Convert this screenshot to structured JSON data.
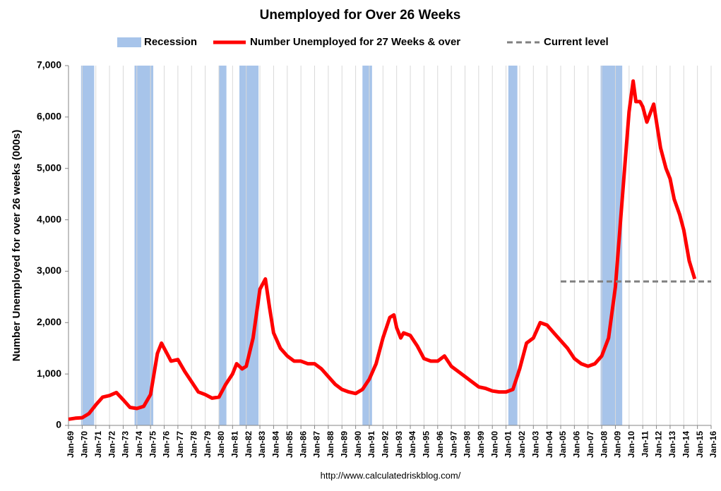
{
  "chart_data": {
    "type": "line",
    "title": "Unemployed for Over 26 Weeks",
    "y_label": "Number Unemployed for over 26 weeks (000s)",
    "source": "http://www.calculatedriskblog.com/",
    "grid": "vertical",
    "legend": "top",
    "xlim": [
      1969,
      2016
    ],
    "ylim": [
      0,
      7000
    ],
    "yticks": [
      0,
      {
        "value": 1000,
        "label": "1,000"
      },
      {
        "value": 2000,
        "label": "2,000"
      },
      {
        "value": 3000,
        "label": "3,000"
      },
      {
        "value": 4000,
        "label": "4,000"
      },
      {
        "value": 5000,
        "label": "5,000"
      },
      {
        "value": 6000,
        "label": "6,000"
      },
      {
        "value": 7000,
        "label": "7,000"
      }
    ],
    "xticks": [
      {
        "value": 1969,
        "label": "Jan-69"
      },
      {
        "value": 1970,
        "label": "Jan-70"
      },
      {
        "value": 1971,
        "label": "Jan-71"
      },
      {
        "value": 1972,
        "label": "Jan-72"
      },
      {
        "value": 1973,
        "label": "Jan-73"
      },
      {
        "value": 1974,
        "label": "Jan-74"
      },
      {
        "value": 1975,
        "label": "Jan-75"
      },
      {
        "value": 1976,
        "label": "Jan-76"
      },
      {
        "value": 1977,
        "label": "Jan-77"
      },
      {
        "value": 1978,
        "label": "Jan-78"
      },
      {
        "value": 1979,
        "label": "Jan-79"
      },
      {
        "value": 1980,
        "label": "Jan-80"
      },
      {
        "value": 1981,
        "label": "Jan-81"
      },
      {
        "value": 1982,
        "label": "Jan-82"
      },
      {
        "value": 1983,
        "label": "Jan-83"
      },
      {
        "value": 1984,
        "label": "Jan-84"
      },
      {
        "value": 1985,
        "label": "Jan-85"
      },
      {
        "value": 1986,
        "label": "Jan-86"
      },
      {
        "value": 1987,
        "label": "Jan-87"
      },
      {
        "value": 1988,
        "label": "Jan-88"
      },
      {
        "value": 1989,
        "label": "Jan-89"
      },
      {
        "value": 1990,
        "label": "Jan-90"
      },
      {
        "value": 1991,
        "label": "Jan-91"
      },
      {
        "value": 1992,
        "label": "Jan-92"
      },
      {
        "value": 1993,
        "label": "Jan-93"
      },
      {
        "value": 1994,
        "label": "Jan-94"
      },
      {
        "value": 1995,
        "label": "Jan-95"
      },
      {
        "value": 1996,
        "label": "Jan-96"
      },
      {
        "value": 1997,
        "label": "Jan-97"
      },
      {
        "value": 1998,
        "label": "Jan-98"
      },
      {
        "value": 1999,
        "label": "Jan-99"
      },
      {
        "value": 2000,
        "label": "Jan-00"
      },
      {
        "value": 2001,
        "label": "Jan-01"
      },
      {
        "value": 2002,
        "label": "Jan-02"
      },
      {
        "value": 2003,
        "label": "Jan-03"
      },
      {
        "value": 2004,
        "label": "Jan-04"
      },
      {
        "value": 2005,
        "label": "Jan-05"
      },
      {
        "value": 2006,
        "label": "Jan-06"
      },
      {
        "value": 2007,
        "label": "Jan-07"
      },
      {
        "value": 2008,
        "label": "Jan-08"
      },
      {
        "value": 2009,
        "label": "Jan-09"
      },
      {
        "value": 2010,
        "label": "Jan-10"
      },
      {
        "value": 2011,
        "label": "Jan-11"
      },
      {
        "value": 2012,
        "label": "Jan-12"
      },
      {
        "value": 2013,
        "label": "Jan-13"
      },
      {
        "value": 2014,
        "label": "Jan-14"
      },
      {
        "value": 2015,
        "label": "Jan-15"
      },
      {
        "value": 2016,
        "label": "Jan-16"
      }
    ],
    "recessions": {
      "name": "Recession",
      "color": "#a7c4ea",
      "spans": [
        [
          1969.92,
          1970.88
        ],
        [
          1973.83,
          1975.2
        ],
        [
          1980.0,
          1980.55
        ],
        [
          1981.5,
          1982.9
        ],
        [
          1990.5,
          1991.2
        ],
        [
          2001.17,
          2001.83
        ],
        [
          2007.92,
          2009.5
        ]
      ]
    },
    "series": [
      {
        "name": "Number Unemployed for 27 Weeks & over",
        "color": "#ff0000",
        "x": [
          1969.0,
          1969.5,
          1970.0,
          1970.5,
          1971.0,
          1971.5,
          1972.0,
          1972.5,
          1973.0,
          1973.5,
          1974.0,
          1974.5,
          1975.0,
          1975.5,
          1975.8,
          1976.0,
          1976.5,
          1977.0,
          1977.5,
          1978.0,
          1978.5,
          1979.0,
          1979.5,
          1980.0,
          1980.5,
          1981.0,
          1981.3,
          1981.7,
          1982.0,
          1982.5,
          1983.0,
          1983.4,
          1983.7,
          1984.0,
          1984.5,
          1985.0,
          1985.5,
          1986.0,
          1986.5,
          1987.0,
          1987.5,
          1988.0,
          1988.5,
          1989.0,
          1989.5,
          1990.0,
          1990.5,
          1991.0,
          1991.5,
          1992.0,
          1992.5,
          1992.8,
          1993.0,
          1993.3,
          1993.5,
          1994.0,
          1994.5,
          1995.0,
          1995.5,
          1996.0,
          1996.5,
          1997.0,
          1997.5,
          1998.0,
          1998.5,
          1999.0,
          1999.5,
          2000.0,
          2000.5,
          2001.0,
          2001.5,
          2002.0,
          2002.5,
          2003.0,
          2003.5,
          2004.0,
          2004.5,
          2005.0,
          2005.5,
          2006.0,
          2006.5,
          2007.0,
          2007.5,
          2008.0,
          2008.5,
          2009.0,
          2009.5,
          2010.0,
          2010.3,
          2010.5,
          2010.8,
          2011.0,
          2011.3,
          2011.8,
          2012.3,
          2012.7,
          2013.0,
          2013.3,
          2013.7,
          2014.0,
          2014.4,
          2014.8
        ],
        "values": [
          120,
          140,
          150,
          230,
          400,
          550,
          580,
          640,
          500,
          350,
          330,
          370,
          600,
          1400,
          1600,
          1500,
          1250,
          1280,
          1050,
          850,
          650,
          600,
          530,
          550,
          800,
          1000,
          1200,
          1100,
          1150,
          1700,
          2650,
          2850,
          2300,
          1800,
          1500,
          1350,
          1250,
          1250,
          1200,
          1200,
          1100,
          950,
          800,
          700,
          650,
          620,
          700,
          900,
          1200,
          1700,
          2100,
          2150,
          1900,
          1700,
          1800,
          1750,
          1550,
          1300,
          1250,
          1250,
          1350,
          1150,
          1050,
          950,
          850,
          750,
          720,
          670,
          650,
          650,
          700,
          1100,
          1600,
          1700,
          2000,
          1950,
          1800,
          1650,
          1500,
          1300,
          1200,
          1150,
          1200,
          1350,
          1700,
          2700,
          4400,
          6100,
          6700,
          6300,
          6300,
          6200,
          5900,
          6250,
          5400,
          5000,
          4800,
          4400,
          4100,
          3800,
          3200,
          2850
        ]
      },
      {
        "name": "Current level",
        "color": "#7f7f7f",
        "dashed": true,
        "x": [
          2005,
          2016
        ],
        "values": [
          2800,
          2800
        ]
      }
    ]
  }
}
